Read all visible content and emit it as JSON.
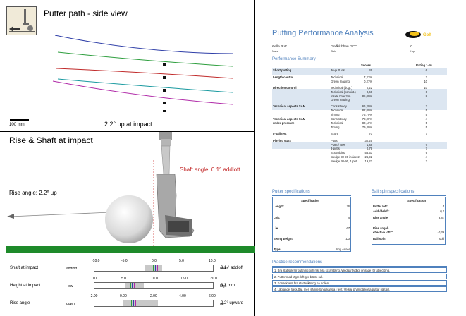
{
  "left": {
    "putter_path": {
      "title": "Putter path - side view",
      "scale_label": "100 mm",
      "caption": "2.2° up at impact"
    },
    "rise_shaft": {
      "title": "Rise & Shaft at impact",
      "shaft_angle": "Shaft angle: 0.1° addloft",
      "rise_angle": "Rise angle: 2.2° up"
    },
    "gauges": [
      {
        "label": "Shaft at impact",
        "ticks": [
          "-10.0",
          "-5.0",
          "0.0",
          "5.0",
          "10.0"
        ],
        "left": "addloft",
        "right": "deloft",
        "value": "0.1 ° addloft"
      },
      {
        "label": "Height at impact",
        "ticks": [
          "0.0",
          "5.0",
          "10.0",
          "15.0",
          "20.0"
        ],
        "left": "low",
        "right": "high",
        "value": "6.3 mm"
      },
      {
        "label": "Rise angle",
        "ticks": [
          "-2.00",
          "0.00",
          "2.00",
          "4.00",
          "6.00"
        ],
        "left": "down",
        "right": "up",
        "value": "2.2° upward"
      }
    ]
  },
  "report": {
    "title": "Putting Performance Analysis",
    "logo_text": "Golf",
    "player_name": "Pelle Putt",
    "player_label": "Name",
    "club_name": "Golfklubben GCC",
    "club_label": "Club",
    "hcp_value": "0",
    "hcp_label": "Hcp",
    "summary_title": "Performance Summary",
    "col_scores": "Scores",
    "col_rating": "Rating 1-10",
    "rows": [
      {
        "cat": "Short putting",
        "item": "36-putt test",
        "score": "26",
        "rating": "6"
      },
      {
        "cat": "Length control",
        "item": "Technical",
        "score": "7,27%",
        "rating": "2"
      },
      {
        "cat": "",
        "item": "Green reading",
        "score": "0,27%",
        "rating": "10"
      },
      {
        "cat": "Direction control",
        "item": "Technical (dogr.)",
        "score": "0,22",
        "rating": "10"
      },
      {
        "cat": "",
        "item": "Technical (consist.)",
        "score": "0,66",
        "rating": "6"
      },
      {
        "cat": "",
        "item": "Inside hole 3 m",
        "score": "85,00%",
        "rating": "8"
      },
      {
        "cat": "",
        "item": "Green reading",
        "score": "",
        "rating": ""
      },
      {
        "cat": "Technical aspects SAM",
        "item": "Consistency",
        "score": "66,20%",
        "rating": "3"
      },
      {
        "cat": "",
        "item": "Technical",
        "score": "82,00%",
        "rating": "5"
      },
      {
        "cat": "",
        "item": "Timing",
        "score": "76,70%",
        "rating": "5"
      },
      {
        "cat": "Technical aspects SAM",
        "item": "Consistency",
        "score": "78,00%",
        "rating": "4"
      },
      {
        "cat": "under pressure",
        "item": "Technical",
        "score": "80,10%",
        "rating": "5"
      },
      {
        "cat": "",
        "item": "Timing",
        "score": "79,40%",
        "rating": "5"
      },
      {
        "cat": "8-ball test",
        "item": "Score",
        "score": "70",
        "rating": "7"
      },
      {
        "cat": "Playing stats",
        "item": "Putts",
        "score": "30,25",
        "rating": ""
      },
      {
        "cat": "",
        "item": "Putts / GIR",
        "score": "1,68",
        "rating": "7"
      },
      {
        "cat": "",
        "item": "3-putts",
        "score": "0,79",
        "rating": "7"
      },
      {
        "cat": "",
        "item": "Scrambling",
        "score": "55,53",
        "rating": "9"
      },
      {
        "cat": "",
        "item": "Wedge 30-90 inside 2",
        "score": "26,92",
        "rating": "4"
      },
      {
        "cat": "",
        "item": "Wedge 30-90, 1-putt",
        "score": "19,23",
        "rating": "3"
      }
    ],
    "putter_spec_title": "Putter specifications",
    "putter_spec_header": "Specification",
    "putter_spec": [
      {
        "k": "Length:",
        "v": "35"
      },
      {
        "k": "Loft:",
        "v": "4"
      },
      {
        "k": "Lie:",
        "v": "67"
      },
      {
        "k": "Swing weight:",
        "v": "D3"
      },
      {
        "k": "Type:",
        "v": "Ping Anser"
      }
    ],
    "ball_spec_title": "Ball spin specifications",
    "ball_spec_header": "Specification",
    "ball_spec": [
      {
        "k": "Putter loft:",
        "v": "4"
      },
      {
        "k": "Add-/deloft:",
        "v": "0,2"
      },
      {
        "k": "Rise angle:",
        "v": "3,81"
      },
      {
        "k": "Rise angel-",
        "v": ""
      },
      {
        "k": "effective loft =",
        "v": "-0,39"
      },
      {
        "k": "Ball spin:",
        "v": "Skid"
      }
    ],
    "practice_title": "Practice recommendations",
    "practice": [
      "1. Bra statistik för puttning och mkt bra scrambling. Wedgar tydligt område för utveckling.",
      "2. Putter med lägre loft ger bättre rull.",
      "3. Konsekvent bra starteriktning på bollen.",
      "4. Låg andel treputtar, men sämre längdkänsla i test. Verkar prym på korta puttar på tävl."
    ]
  }
}
